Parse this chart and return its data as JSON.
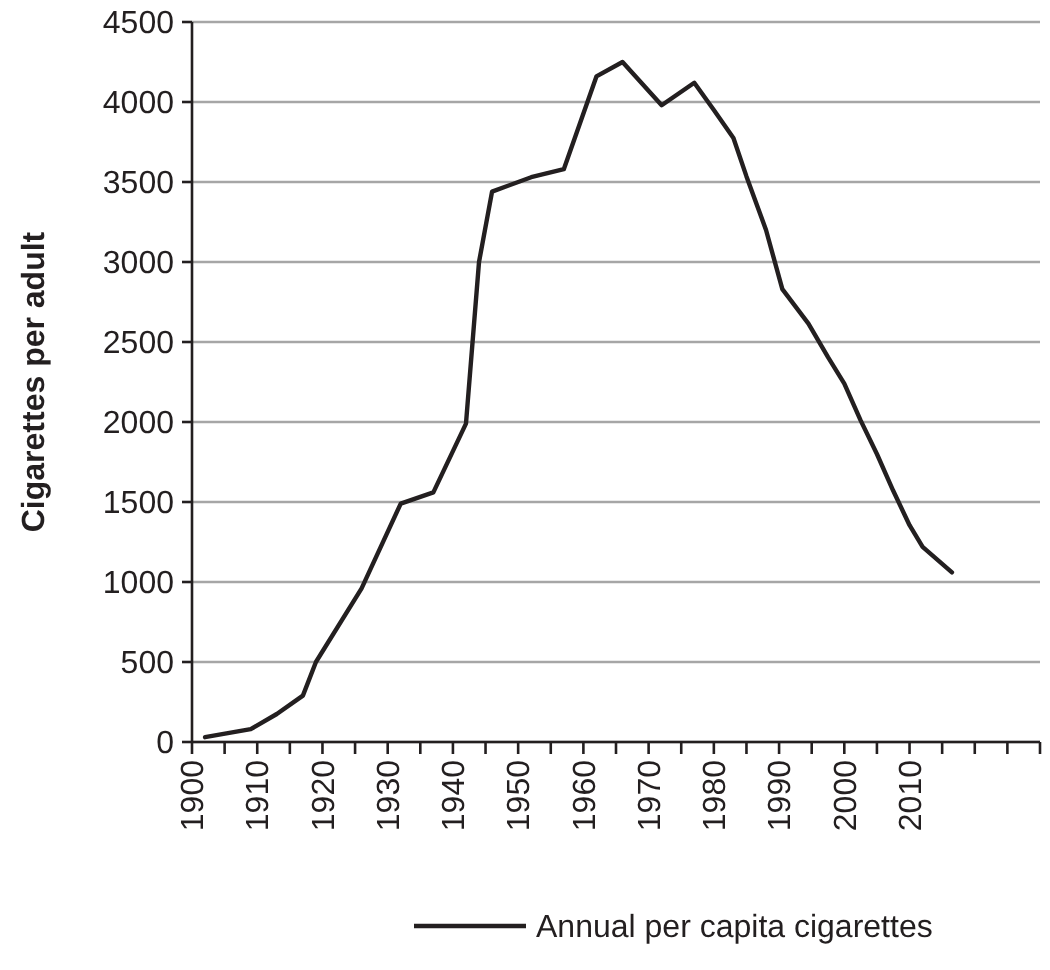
{
  "chart_data": {
    "type": "line",
    "ylabel": "Cigarettes per adult",
    "x": [
      1902,
      1909,
      1913,
      1917,
      1919,
      1926,
      1932,
      1937,
      1942,
      1944,
      1946,
      1952,
      1957,
      1962,
      1966,
      1972,
      1977,
      1980,
      1983,
      1985,
      1988,
      1990.5,
      1994.5,
      1997.5,
      2000,
      2002.5,
      2005,
      2007.5,
      2010,
      2012,
      2016.5
    ],
    "series": [
      {
        "name": "Annual per capita cigarettes",
        "color": "#231f20",
        "values": [
          30,
          80,
          175,
          290,
          500,
          960,
          1490,
          1560,
          1990,
          3000,
          3440,
          3530,
          3580,
          4160,
          4250,
          3980,
          4120,
          3950,
          3775,
          3535,
          3200,
          2830,
          2615,
          2405,
          2240,
          2010,
          1800,
          1570,
          1355,
          1220,
          1060
        ]
      }
    ],
    "xlim": [
      1900,
      2030
    ],
    "xticks": [
      1900,
      {
        "value": 1905,
        "label": null
      },
      1910,
      {
        "value": 1915,
        "label": null
      },
      1920,
      {
        "value": 1925,
        "label": null
      },
      1930,
      {
        "value": 1935,
        "label": null
      },
      1940,
      {
        "value": 1945,
        "label": null
      },
      1950,
      {
        "value": 1955,
        "label": null
      },
      1960,
      {
        "value": 1965,
        "label": null
      },
      1970,
      {
        "value": 1975,
        "label": null
      },
      1980,
      {
        "value": 1985,
        "label": null
      },
      1990,
      {
        "value": 1995,
        "label": null
      },
      2000,
      {
        "value": 2005,
        "label": null
      },
      2010,
      {
        "value": 2015,
        "label": null
      },
      {
        "value": 2020,
        "label": null
      },
      {
        "value": 2025,
        "label": null
      },
      {
        "value": 2030,
        "label": null
      }
    ],
    "ylim": [
      0,
      4500
    ],
    "yticks": [
      0,
      500,
      1000,
      1500,
      2000,
      2500,
      3000,
      3500,
      4000,
      4500
    ],
    "grid": "y",
    "legend": "bottom",
    "marker": "none",
    "line_style": "solid"
  }
}
